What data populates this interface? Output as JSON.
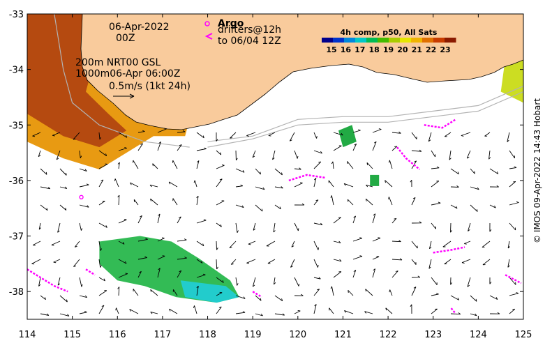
{
  "map": {
    "lon_range": [
      114,
      125
    ],
    "lat_range": [
      -38.5,
      -33
    ],
    "lon_ticks": [
      "114",
      "115",
      "116",
      "117",
      "118",
      "119",
      "120",
      "121",
      "122",
      "123",
      "124",
      "125"
    ],
    "lat_ticks": [
      "-33",
      "-34",
      "-35",
      "-36",
      "-37",
      "-38"
    ],
    "land_color": "#f9cb9c",
    "coast_color": "#000000",
    "isobath_color": "#b3b3b3",
    "arrow_color": "#000000",
    "argo_color": "#ff00ff"
  },
  "annotations": {
    "date_line1": "06-Apr-2022",
    "date_line2": "00Z",
    "depth_line1": "200m  NRT00 GSL",
    "depth_line2": "1000m06-Apr 06:00Z",
    "scale_label": "0.5m/s (1kt 24h)",
    "argo_title": "Argo",
    "drifters_line1": "drifters@12h",
    "drifters_line2": "to 06/04 12Z"
  },
  "colorbar": {
    "title": "4h comp, p50, All Sats",
    "labels": [
      "15",
      "16",
      "17",
      "18",
      "19",
      "20",
      "21",
      "22",
      "23"
    ],
    "colors": [
      "#00008c",
      "#0033cc",
      "#0088dd",
      "#00c8c8",
      "#00bb55",
      "#44bb00",
      "#aacc00",
      "#e6e600",
      "#f0b400",
      "#e07000",
      "#c83c00",
      "#8b1a00"
    ]
  },
  "sst_patches": [
    {
      "name": "west-warm",
      "color": "#e89a12",
      "points": [
        [
          114,
          -33
        ],
        [
          115.7,
          -33
        ],
        [
          116.0,
          -33.9
        ],
        [
          117.0,
          -34.4
        ],
        [
          117.6,
          -34.9
        ],
        [
          117.5,
          -35.2
        ],
        [
          116.8,
          -35.2
        ],
        [
          116.2,
          -35.5
        ],
        [
          115.6,
          -35.8
        ],
        [
          114.8,
          -35.6
        ],
        [
          114,
          -35.3
        ]
      ]
    },
    {
      "name": "west-hot",
      "color": "#b54a10",
      "points": [
        [
          114,
          -33
        ],
        [
          115.3,
          -33
        ],
        [
          115.5,
          -33.8
        ],
        [
          115.3,
          -34.4
        ],
        [
          115.8,
          -34.8
        ],
        [
          116.2,
          -35.1
        ],
        [
          115.6,
          -35.4
        ],
        [
          114.8,
          -35.2
        ],
        [
          114,
          -34.8
        ]
      ]
    },
    {
      "name": "south-green",
      "color": "#33bb55",
      "points": [
        [
          115.6,
          -37.1
        ],
        [
          116.5,
          -37.0
        ],
        [
          117.2,
          -37.1
        ],
        [
          117.8,
          -37.4
        ],
        [
          118.5,
          -37.8
        ],
        [
          118.7,
          -38.1
        ],
        [
          118.2,
          -38.2
        ],
        [
          117.3,
          -38.1
        ],
        [
          116.6,
          -37.9
        ],
        [
          116.0,
          -37.8
        ],
        [
          115.6,
          -37.5
        ]
      ]
    },
    {
      "name": "south-cyan",
      "color": "#22cccc",
      "points": [
        [
          117.4,
          -37.8
        ],
        [
          118.4,
          -37.9
        ],
        [
          118.7,
          -38.1
        ],
        [
          118.2,
          -38.2
        ],
        [
          117.5,
          -38.1
        ]
      ]
    },
    {
      "name": "east-yellow",
      "color": "#ccdd22",
      "points": [
        [
          124.4,
          -33
        ],
        [
          125,
          -33
        ],
        [
          125,
          -34.6
        ],
        [
          124.5,
          -34.4
        ],
        [
          124.6,
          -33.8
        ]
      ]
    },
    {
      "name": "green-blob-1",
      "color": "#22aa44",
      "points": [
        [
          120.9,
          -35.1
        ],
        [
          121.2,
          -35.0
        ],
        [
          121.3,
          -35.3
        ],
        [
          121.0,
          -35.4
        ]
      ]
    },
    {
      "name": "green-blob-2",
      "color": "#22aa44",
      "points": [
        [
          121.6,
          -35.9
        ],
        [
          121.8,
          -35.9
        ],
        [
          121.8,
          -36.1
        ],
        [
          121.6,
          -36.1
        ]
      ]
    }
  ],
  "isobaths": [
    {
      "name": "isobath-200m",
      "points": [
        [
          118.0,
          -35.3
        ],
        [
          119.0,
          -35.2
        ],
        [
          120.0,
          -34.9
        ],
        [
          121.0,
          -34.85
        ],
        [
          122.0,
          -34.85
        ],
        [
          123.0,
          -34.75
        ],
        [
          124.0,
          -34.65
        ],
        [
          125.0,
          -34.3
        ]
      ]
    },
    {
      "name": "isobath-1000m",
      "points": [
        [
          118.0,
          -35.4
        ],
        [
          119.0,
          -35.25
        ],
        [
          120.0,
          -35.0
        ],
        [
          121.0,
          -34.95
        ],
        [
          122.0,
          -34.95
        ],
        [
          123.0,
          -34.85
        ],
        [
          124.0,
          -34.75
        ],
        [
          125.0,
          -34.4
        ]
      ]
    },
    {
      "name": "isobath-west",
      "points": [
        [
          114.6,
          -33
        ],
        [
          114.8,
          -34.0
        ],
        [
          115.0,
          -34.6
        ],
        [
          115.6,
          -35.0
        ],
        [
          116.6,
          -35.3
        ],
        [
          117.6,
          -35.4
        ]
      ]
    }
  ],
  "argo": [
    {
      "lon": 115.2,
      "lat": -36.3
    }
  ],
  "drifters": [
    {
      "points": [
        [
          114.0,
          -37.6
        ],
        [
          114.3,
          -37.75
        ],
        [
          114.6,
          -37.9
        ],
        [
          114.9,
          -38.0
        ]
      ]
    },
    {
      "points": [
        [
          115.3,
          -37.6
        ],
        [
          115.5,
          -37.7
        ]
      ]
    },
    {
      "points": [
        [
          119.8,
          -36.0
        ],
        [
          120.2,
          -35.9
        ],
        [
          120.6,
          -35.95
        ]
      ]
    },
    {
      "points": [
        [
          122.2,
          -35.4
        ],
        [
          122.4,
          -35.6
        ],
        [
          122.7,
          -35.8
        ]
      ]
    },
    {
      "points": [
        [
          122.8,
          -35.0
        ],
        [
          123.2,
          -35.05
        ],
        [
          123.5,
          -34.9
        ]
      ]
    },
    {
      "points": [
        [
          123.0,
          -37.3
        ],
        [
          123.4,
          -37.25
        ],
        [
          123.7,
          -37.2
        ]
      ]
    },
    {
      "points": [
        [
          119.0,
          -38.0
        ],
        [
          119.2,
          -38.1
        ]
      ]
    },
    {
      "points": [
        [
          123.4,
          -38.3
        ],
        [
          123.5,
          -38.4
        ]
      ]
    },
    {
      "points": [
        [
          124.6,
          -37.7
        ],
        [
          124.95,
          -37.85
        ]
      ]
    }
  ]
}
